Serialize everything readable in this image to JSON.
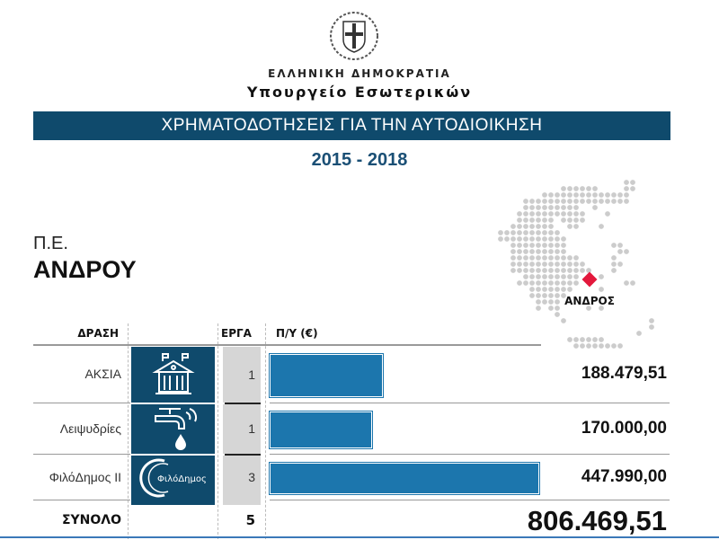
{
  "header": {
    "government": "ΕΛΛΗΝΙΚΗ ΔΗΜΟΚΡΑΤΙΑ",
    "ministry": "Υπουργείο Εσωτερικών",
    "banner": "ΧΡΗΜΑΤΟΔΟΤΗΣΕΙΣ ΓΙΑ ΤΗΝ ΑΥΤΟΔΙΟΙΚΗΣΗ",
    "years": "2015 - 2018"
  },
  "region": {
    "prefix": "Π.Ε.",
    "name": "ΑΝΔΡΟΥ",
    "map_label": "ΑΝΔΡΟΣ",
    "marker_color": "#e3183c",
    "dot_color": "#cccccc"
  },
  "table": {
    "col_action": "ΔΡΑΣΗ",
    "col_projects": "ΕΡΓΑ",
    "col_budget": "Π/Υ (€)",
    "total_label": "ΣΥΝΟΛΟ",
    "total_projects": "5",
    "total_value": "806.469,51"
  },
  "colors": {
    "banner": "#0f4a6c",
    "bar": "#1c76ad",
    "years": "#1a4f75"
  },
  "chart_data": {
    "type": "bar",
    "orientation": "horizontal",
    "categories": [
      "ΑΚΣΙΑ",
      "Λειψυδρίες",
      "ΦιλόΔημος ΙΙ"
    ],
    "values": [
      188479.51,
      170000.0,
      447990.0
    ],
    "value_labels": [
      "188.479,51",
      "170.000,00",
      "447.990,00"
    ],
    "projects": [
      "1",
      "1",
      "3"
    ],
    "icons": [
      "town-hall-icon",
      "water-tap-icon",
      "filodimos-logo"
    ],
    "logo_text": "ΦιλόΔημος",
    "unit": "€"
  }
}
